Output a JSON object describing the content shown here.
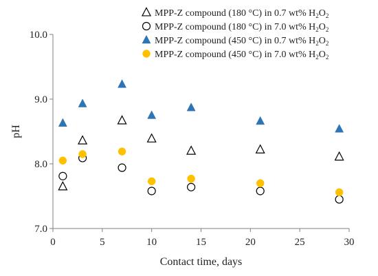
{
  "chart_data": {
    "type": "scatter",
    "xlabel": "Contact time, days",
    "ylabel": "pH",
    "xlim": [
      0,
      30
    ],
    "ylim": [
      7.0,
      10.0
    ],
    "xticks": [
      "0",
      "5",
      "10",
      "15",
      "20",
      "25",
      "30"
    ],
    "yticks": [
      "7.0",
      "8.0",
      "9.0",
      "10.0"
    ],
    "xtick_values": [
      0,
      5,
      10,
      15,
      20,
      25,
      30
    ],
    "ytick_values": [
      7.0,
      8.0,
      9.0,
      10.0
    ],
    "grid": false,
    "legend_position": "top-right",
    "series": [
      {
        "name": "MPP-Z compound (180 °C) in 0.7 wt% H",
        "name_subscript": "2",
        "name_suffix": "O",
        "name_subscript2": "2",
        "marker": "triangle-open",
        "color": "#000000",
        "x": [
          1,
          3,
          7,
          10,
          14,
          21,
          29
        ],
        "y": [
          7.65,
          8.36,
          8.67,
          8.39,
          8.2,
          8.22,
          8.11
        ]
      },
      {
        "name": "MPP-Z compound (180 °C) in 7.0 wt% H",
        "name_subscript": "2",
        "name_suffix": "O",
        "name_subscript2": "2",
        "marker": "circle-open",
        "color": "#000000",
        "x": [
          1,
          3,
          7,
          10,
          14,
          21,
          29
        ],
        "y": [
          7.81,
          8.09,
          7.94,
          7.58,
          7.64,
          7.58,
          7.45
        ]
      },
      {
        "name": "MPP-Z compound (450 °C) in 0.7 wt% H",
        "name_subscript": "2",
        "name_suffix": "O",
        "name_subscript2": "2",
        "marker": "triangle-filled",
        "color": "#2E75B6",
        "x": [
          1,
          3,
          7,
          10,
          14,
          21,
          29
        ],
        "y": [
          8.63,
          8.93,
          9.23,
          8.75,
          8.87,
          8.66,
          8.54
        ]
      },
      {
        "name": "MPP-Z compound (450 °C) in 7.0 wt% H",
        "name_subscript": "2",
        "name_suffix": "O",
        "name_subscript2": "2",
        "marker": "circle-filled",
        "color": "#FFC000",
        "x": [
          1,
          3,
          7,
          10,
          14,
          21,
          29
        ],
        "y": [
          8.05,
          8.15,
          8.19,
          7.73,
          7.77,
          7.7,
          7.56
        ]
      }
    ]
  }
}
